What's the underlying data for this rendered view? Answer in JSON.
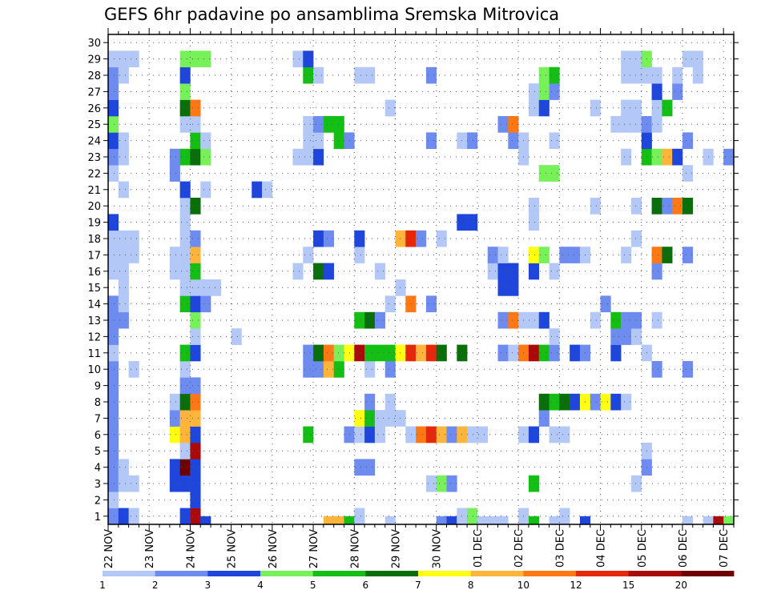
{
  "chart_data": {
    "type": "heatmap",
    "title": "GEFS 6hr padavine po ansamblima Sremska Mitrovica",
    "xlabel": "",
    "ylabel": "",
    "x_tick_labels": [
      "22 NOV",
      "23 NOV",
      "24 NOV",
      "25 NOV",
      "26 NOV",
      "27 NOV",
      "28 NOV",
      "29 NOV",
      "30 NOV",
      "01 DEC",
      "02 DEC",
      "03 DEC",
      "04 DEC",
      "05 DEC",
      "06 DEC",
      "07 DEC"
    ],
    "y_tick_labels": [
      "1",
      "2",
      "3",
      "4",
      "5",
      "6",
      "7",
      "8",
      "9",
      "10",
      "11",
      "12",
      "13",
      "14",
      "15",
      "16",
      "17",
      "18",
      "19",
      "20",
      "21",
      "22",
      "23",
      "24",
      "25",
      "26",
      "27",
      "28",
      "29",
      "30"
    ],
    "n_steps": 61,
    "n_members": 30,
    "grid": true,
    "colorbar": {
      "labels": [
        "1",
        "2",
        "3",
        "4",
        "5",
        "6",
        "7",
        "8",
        "10",
        "12",
        "15",
        "20"
      ],
      "bins": [
        1,
        2,
        3,
        4,
        5,
        6,
        7,
        8,
        10,
        12,
        15,
        20
      ],
      "colors": [
        "#b4c8f8",
        "#6e8cf0",
        "#1e46dc",
        "#78f05a",
        "#14be14",
        "#0a6e0a",
        "#ffff14",
        "#ffb43c",
        "#ff7814",
        "#e6280a",
        "#aa0a0a",
        "#6e0000"
      ],
      "position": "bottom"
    },
    "cells": [
      [
        0,
        0,
        1
      ],
      [
        1,
        0,
        1
      ],
      [
        0,
        1,
        2
      ],
      [
        0,
        2,
        1
      ],
      [
        0,
        3,
        2
      ],
      [
        0,
        4,
        2
      ],
      [
        0,
        5,
        2
      ],
      [
        0,
        6,
        2
      ],
      [
        0,
        7,
        2
      ],
      [
        0,
        8,
        2
      ],
      [
        0,
        9,
        2
      ],
      [
        0,
        10,
        2
      ],
      [
        0,
        11,
        1
      ],
      [
        0,
        12,
        2
      ],
      [
        0,
        13,
        2
      ],
      [
        0,
        14,
        2
      ],
      [
        0,
        16,
        1
      ],
      [
        0,
        17,
        1
      ],
      [
        0,
        18,
        1
      ],
      [
        0,
        19,
        3
      ],
      [
        0,
        22,
        1
      ],
      [
        0,
        23,
        2
      ],
      [
        0,
        24,
        3
      ],
      [
        0,
        25,
        4
      ],
      [
        0,
        26,
        3
      ],
      [
        0,
        27,
        2
      ],
      [
        0,
        28,
        2
      ],
      [
        0,
        29,
        1
      ],
      [
        1,
        1,
        3
      ],
      [
        1,
        3,
        1
      ],
      [
        1,
        4,
        1
      ],
      [
        1,
        13,
        2
      ],
      [
        1,
        14,
        1
      ],
      [
        1,
        15,
        1
      ],
      [
        1,
        16,
        1
      ],
      [
        1,
        17,
        1
      ],
      [
        1,
        18,
        1
      ],
      [
        1,
        21,
        1
      ],
      [
        1,
        23,
        1
      ],
      [
        1,
        24,
        1
      ],
      [
        1,
        28,
        1
      ],
      [
        1,
        29,
        1
      ],
      [
        2,
        1,
        1
      ],
      [
        2,
        3,
        1
      ],
      [
        2,
        10,
        1
      ],
      [
        2,
        17,
        1
      ],
      [
        2,
        18,
        1
      ],
      [
        2,
        29,
        1
      ],
      [
        6,
        3,
        3
      ],
      [
        6,
        4,
        3
      ],
      [
        6,
        6,
        7
      ],
      [
        6,
        7,
        2
      ],
      [
        6,
        8,
        1
      ],
      [
        6,
        16,
        1
      ],
      [
        6,
        17,
        1
      ],
      [
        6,
        22,
        2
      ],
      [
        6,
        23,
        2
      ],
      [
        7,
        1,
        3
      ],
      [
        7,
        3,
        3
      ],
      [
        7,
        4,
        12
      ],
      [
        7,
        5,
        1
      ],
      [
        7,
        6,
        8
      ],
      [
        7,
        7,
        8
      ],
      [
        7,
        8,
        6
      ],
      [
        7,
        9,
        2
      ],
      [
        7,
        10,
        1
      ],
      [
        7,
        11,
        5
      ],
      [
        7,
        14,
        5
      ],
      [
        7,
        15,
        1
      ],
      [
        7,
        16,
        1
      ],
      [
        7,
        17,
        1
      ],
      [
        7,
        18,
        1
      ],
      [
        7,
        19,
        1
      ],
      [
        7,
        20,
        1
      ],
      [
        7,
        21,
        3
      ],
      [
        7,
        23,
        5
      ],
      [
        7,
        25,
        1
      ],
      [
        7,
        26,
        6
      ],
      [
        7,
        27,
        4
      ],
      [
        7,
        28,
        3
      ],
      [
        7,
        29,
        4
      ],
      [
        8,
        0,
        4
      ],
      [
        8,
        1,
        11
      ],
      [
        8,
        2,
        3
      ],
      [
        8,
        3,
        3
      ],
      [
        8,
        4,
        3
      ],
      [
        8,
        5,
        11
      ],
      [
        8,
        6,
        3
      ],
      [
        8,
        7,
        8
      ],
      [
        8,
        8,
        9
      ],
      [
        8,
        9,
        2
      ],
      [
        8,
        11,
        3
      ],
      [
        8,
        12,
        1
      ],
      [
        8,
        13,
        4
      ],
      [
        8,
        14,
        3
      ],
      [
        8,
        15,
        1
      ],
      [
        8,
        16,
        5
      ],
      [
        8,
        17,
        8
      ],
      [
        8,
        18,
        2
      ],
      [
        8,
        20,
        6
      ],
      [
        8,
        23,
        6
      ],
      [
        8,
        24,
        5
      ],
      [
        8,
        25,
        1
      ],
      [
        8,
        26,
        9
      ],
      [
        8,
        29,
        4
      ],
      [
        9,
        0,
        3
      ],
      [
        9,
        14,
        2
      ],
      [
        9,
        15,
        1
      ],
      [
        9,
        21,
        1
      ],
      [
        9,
        23,
        4
      ],
      [
        9,
        24,
        1
      ],
      [
        9,
        29,
        4
      ],
      [
        10,
        15,
        1
      ],
      [
        12,
        12,
        1
      ],
      [
        14,
        21,
        3
      ],
      [
        15,
        21,
        1
      ],
      [
        18,
        16,
        1
      ],
      [
        18,
        23,
        1
      ],
      [
        18,
        29,
        1
      ],
      [
        19,
        6,
        5
      ],
      [
        19,
        10,
        2
      ],
      [
        19,
        11,
        2
      ],
      [
        19,
        17,
        1
      ],
      [
        19,
        23,
        1
      ],
      [
        19,
        24,
        1
      ],
      [
        19,
        25,
        1
      ],
      [
        19,
        28,
        5
      ],
      [
        19,
        29,
        3
      ],
      [
        20,
        10,
        2
      ],
      [
        20,
        11,
        6
      ],
      [
        20,
        16,
        6
      ],
      [
        20,
        18,
        3
      ],
      [
        20,
        23,
        3
      ],
      [
        20,
        24,
        1
      ],
      [
        20,
        25,
        2
      ],
      [
        20,
        28,
        1
      ],
      [
        21,
        0,
        8
      ],
      [
        21,
        10,
        8
      ],
      [
        21,
        11,
        9
      ],
      [
        21,
        16,
        3
      ],
      [
        21,
        18,
        2
      ],
      [
        21,
        25,
        5
      ],
      [
        22,
        0,
        8
      ],
      [
        22,
        10,
        5
      ],
      [
        22,
        11,
        4
      ],
      [
        22,
        24,
        5
      ],
      [
        22,
        25,
        5
      ],
      [
        23,
        0,
        5
      ],
      [
        23,
        6,
        2
      ],
      [
        23,
        11,
        7
      ],
      [
        23,
        24,
        2
      ],
      [
        24,
        0,
        2
      ],
      [
        24,
        1,
        1
      ],
      [
        24,
        4,
        2
      ],
      [
        24,
        6,
        1
      ],
      [
        24,
        7,
        7
      ],
      [
        24,
        11,
        11
      ],
      [
        24,
        13,
        5
      ],
      [
        24,
        17,
        1
      ],
      [
        24,
        18,
        3
      ],
      [
        24,
        28,
        1
      ],
      [
        25,
        4,
        2
      ],
      [
        25,
        6,
        3
      ],
      [
        25,
        7,
        5
      ],
      [
        25,
        8,
        2
      ],
      [
        25,
        10,
        1
      ],
      [
        25,
        11,
        5
      ],
      [
        25,
        13,
        6
      ],
      [
        25,
        28,
        1
      ],
      [
        26,
        6,
        1
      ],
      [
        26,
        7,
        1
      ],
      [
        26,
        11,
        5
      ],
      [
        26,
        13,
        2
      ],
      [
        26,
        16,
        1
      ],
      [
        27,
        0,
        1
      ],
      [
        27,
        7,
        1
      ],
      [
        27,
        8,
        1
      ],
      [
        27,
        10,
        2
      ],
      [
        27,
        11,
        5
      ],
      [
        27,
        14,
        1
      ],
      [
        27,
        26,
        1
      ],
      [
        28,
        7,
        1
      ],
      [
        28,
        11,
        7
      ],
      [
        28,
        15,
        1
      ],
      [
        28,
        18,
        8
      ],
      [
        29,
        6,
        1
      ],
      [
        29,
        11,
        10
      ],
      [
        29,
        14,
        9
      ],
      [
        29,
        18,
        10
      ],
      [
        30,
        6,
        9
      ],
      [
        30,
        11,
        8
      ],
      [
        30,
        18,
        2
      ],
      [
        31,
        3,
        1
      ],
      [
        31,
        6,
        10
      ],
      [
        31,
        11,
        10
      ],
      [
        31,
        14,
        2
      ],
      [
        31,
        24,
        2
      ],
      [
        31,
        28,
        2
      ],
      [
        32,
        0,
        2
      ],
      [
        32,
        3,
        4
      ],
      [
        32,
        6,
        8
      ],
      [
        32,
        11,
        6
      ],
      [
        32,
        18,
        1
      ],
      [
        33,
        0,
        3
      ],
      [
        33,
        3,
        2
      ],
      [
        33,
        6,
        2
      ],
      [
        34,
        0,
        1
      ],
      [
        34,
        1,
        1
      ],
      [
        34,
        6,
        8
      ],
      [
        34,
        11,
        6
      ],
      [
        34,
        19,
        3
      ],
      [
        34,
        24,
        1
      ],
      [
        35,
        0,
        2
      ],
      [
        35,
        1,
        4
      ],
      [
        35,
        6,
        1
      ],
      [
        35,
        19,
        3
      ],
      [
        35,
        24,
        2
      ],
      [
        36,
        0,
        1
      ],
      [
        36,
        6,
        1
      ],
      [
        37,
        0,
        1
      ],
      [
        37,
        16,
        1
      ],
      [
        37,
        17,
        2
      ],
      [
        38,
        0,
        1
      ],
      [
        38,
        11,
        2
      ],
      [
        38,
        13,
        2
      ],
      [
        38,
        15,
        3
      ],
      [
        38,
        16,
        3
      ],
      [
        38,
        17,
        1
      ],
      [
        38,
        25,
        2
      ],
      [
        39,
        11,
        1
      ],
      [
        39,
        13,
        9
      ],
      [
        39,
        15,
        3
      ],
      [
        39,
        16,
        3
      ],
      [
        39,
        24,
        2
      ],
      [
        39,
        25,
        9
      ],
      [
        40,
        1,
        1
      ],
      [
        40,
        6,
        1
      ],
      [
        40,
        11,
        9
      ],
      [
        40,
        13,
        1
      ],
      [
        40,
        23,
        1
      ],
      [
        40,
        24,
        1
      ],
      [
        41,
        0,
        5
      ],
      [
        41,
        3,
        5
      ],
      [
        41,
        6,
        3
      ],
      [
        41,
        11,
        11
      ],
      [
        41,
        13,
        1
      ],
      [
        41,
        16,
        3
      ],
      [
        41,
        17,
        7
      ],
      [
        41,
        19,
        1
      ],
      [
        41,
        20,
        1
      ],
      [
        41,
        26,
        1
      ],
      [
        41,
        27,
        1
      ],
      [
        42,
        7,
        2
      ],
      [
        42,
        8,
        6
      ],
      [
        42,
        11,
        5
      ],
      [
        42,
        13,
        3
      ],
      [
        42,
        17,
        4
      ],
      [
        42,
        22,
        4
      ],
      [
        42,
        26,
        3
      ],
      [
        42,
        27,
        4
      ],
      [
        42,
        28,
        4
      ],
      [
        43,
        0,
        1
      ],
      [
        43,
        6,
        1
      ],
      [
        43,
        8,
        5
      ],
      [
        43,
        11,
        2
      ],
      [
        43,
        12,
        1
      ],
      [
        43,
        16,
        1
      ],
      [
        43,
        22,
        4
      ],
      [
        43,
        24,
        1
      ],
      [
        43,
        27,
        2
      ],
      [
        43,
        28,
        5
      ],
      [
        44,
        1,
        1
      ],
      [
        44,
        6,
        1
      ],
      [
        44,
        8,
        6
      ],
      [
        44,
        17,
        2
      ],
      [
        45,
        8,
        3
      ],
      [
        45,
        11,
        3
      ],
      [
        45,
        17,
        2
      ],
      [
        46,
        0,
        3
      ],
      [
        46,
        8,
        7
      ],
      [
        46,
        11,
        2
      ],
      [
        46,
        17,
        1
      ],
      [
        47,
        8,
        2
      ],
      [
        47,
        13,
        1
      ],
      [
        47,
        20,
        1
      ],
      [
        47,
        26,
        1
      ],
      [
        48,
        8,
        7
      ],
      [
        48,
        14,
        2
      ],
      [
        49,
        8,
        3
      ],
      [
        49,
        11,
        3
      ],
      [
        49,
        12,
        2
      ],
      [
        49,
        13,
        5
      ],
      [
        49,
        25,
        1
      ],
      [
        50,
        8,
        1
      ],
      [
        50,
        12,
        2
      ],
      [
        50,
        13,
        2
      ],
      [
        50,
        17,
        1
      ],
      [
        50,
        23,
        1
      ],
      [
        50,
        25,
        1
      ],
      [
        50,
        26,
        1
      ],
      [
        50,
        28,
        1
      ],
      [
        50,
        29,
        1
      ],
      [
        51,
        3,
        1
      ],
      [
        51,
        12,
        1
      ],
      [
        51,
        13,
        2
      ],
      [
        51,
        18,
        1
      ],
      [
        51,
        20,
        1
      ],
      [
        51,
        25,
        1
      ],
      [
        51,
        26,
        1
      ],
      [
        51,
        28,
        1
      ],
      [
        51,
        29,
        1
      ],
      [
        52,
        4,
        2
      ],
      [
        52,
        5,
        1
      ],
      [
        52,
        11,
        1
      ],
      [
        52,
        23,
        5
      ],
      [
        52,
        24,
        3
      ],
      [
        52,
        25,
        2
      ],
      [
        52,
        28,
        1
      ],
      [
        52,
        29,
        4
      ],
      [
        53,
        10,
        2
      ],
      [
        53,
        13,
        1
      ],
      [
        53,
        16,
        2
      ],
      [
        53,
        17,
        9
      ],
      [
        53,
        20,
        6
      ],
      [
        53,
        23,
        4
      ],
      [
        53,
        25,
        1
      ],
      [
        53,
        26,
        1
      ],
      [
        53,
        27,
        3
      ],
      [
        53,
        28,
        1
      ],
      [
        54,
        17,
        6
      ],
      [
        54,
        20,
        2
      ],
      [
        54,
        23,
        8
      ],
      [
        54,
        26,
        5
      ],
      [
        55,
        20,
        9
      ],
      [
        55,
        23,
        3
      ],
      [
        55,
        27,
        2
      ],
      [
        55,
        28,
        1
      ],
      [
        56,
        0,
        1
      ],
      [
        56,
        10,
        2
      ],
      [
        56,
        17,
        2
      ],
      [
        56,
        20,
        6
      ],
      [
        56,
        22,
        1
      ],
      [
        56,
        24,
        2
      ],
      [
        56,
        29,
        1
      ],
      [
        57,
        28,
        1
      ],
      [
        57,
        29,
        1
      ],
      [
        58,
        0,
        1
      ],
      [
        58,
        23,
        1
      ],
      [
        59,
        0,
        11
      ],
      [
        60,
        0,
        4
      ],
      [
        60,
        23,
        2
      ]
    ]
  }
}
